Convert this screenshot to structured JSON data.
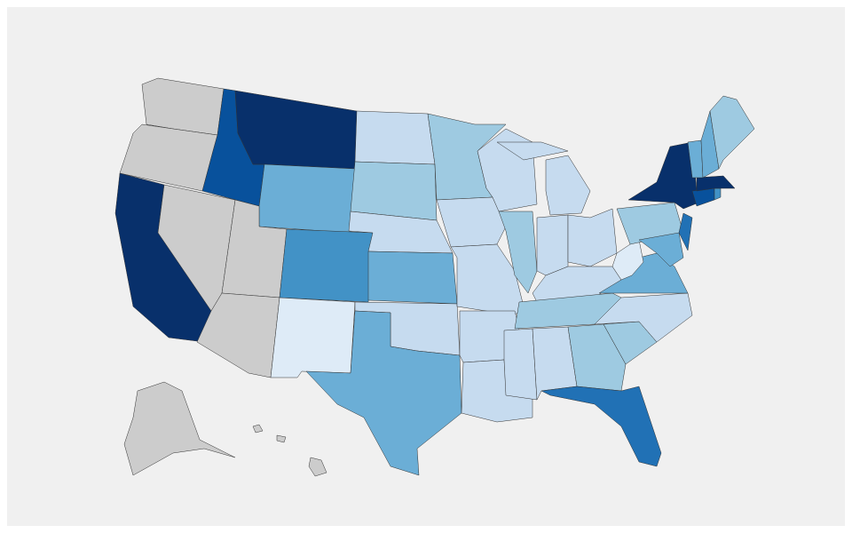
{
  "map": {
    "type": "choropleth",
    "regions": [
      {
        "color": "#cccccc"
      },
      {
        "color": "#cccccc"
      },
      {
        "color": "#08306b"
      },
      {
        "color": "#cccccc"
      },
      {
        "color": "#08519c"
      },
      {
        "color": "#08306b"
      },
      {
        "color": "#6baed6"
      },
      {
        "color": "#cccccc"
      },
      {
        "color": "#4292c6"
      },
      {
        "color": "#cccccc"
      },
      {
        "color": "#deebf7"
      },
      {
        "color": "#c6dbef"
      },
      {
        "color": "#9ecae1"
      },
      {
        "color": "#c6dbef"
      },
      {
        "color": "#6baed6"
      },
      {
        "color": "#c6dbef"
      },
      {
        "color": "#6baed6"
      },
      {
        "color": "#9ecae1"
      },
      {
        "color": "#c6dbef"
      },
      {
        "color": "#c6dbef"
      },
      {
        "color": "#c6dbef"
      },
      {
        "color": "#c6dbef"
      },
      {
        "color": "#c6dbef"
      },
      {
        "color": "#9ecae1"
      },
      {
        "color": "#c6dbef"
      },
      {
        "color": "#c6dbef"
      },
      {
        "color": "#c6dbef"
      },
      {
        "color": "#c6dbef"
      },
      {
        "color": "#9ecae1"
      },
      {
        "color": "#c6dbef"
      },
      {
        "color": "#c6dbef"
      },
      {
        "color": "#9ecae1"
      },
      {
        "color": "#2171b5"
      },
      {
        "color": "#9ecae1"
      },
      {
        "color": "#c6dbef"
      },
      {
        "color": "#6baed6"
      },
      {
        "color": "#deebf7"
      },
      {
        "color": "#9ecae1"
      },
      {
        "color": "#08306b"
      },
      {
        "color": "#2171b5"
      },
      {
        "color": "#6baed6"
      },
      {
        "color": "#08519c"
      },
      {
        "color": "#4292c6"
      },
      {
        "color": "#08306b"
      },
      {
        "color": "#6baed6"
      },
      {
        "color": "#6baed6"
      },
      {
        "color": "#9ecae1"
      },
      {
        "color": "#cccccc"
      },
      {
        "color": "#cccccc"
      }
    ]
  }
}
